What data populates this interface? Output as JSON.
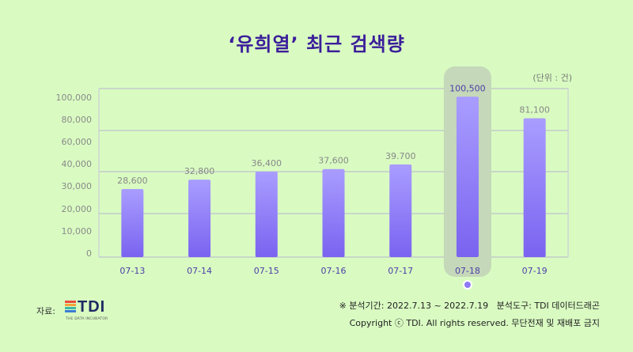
{
  "title": "‘유희열’ 최근 검색량",
  "unit_note": "(단위 : 건)",
  "source_label": "자료:",
  "logo": {
    "text": "TDI",
    "subtitle": "THE DATA INCUBATOR"
  },
  "footnote": {
    "period": "※ 분석기간: 2022.7.13 ~ 2022.7.19   분석도구: TDI 데이터드래곤",
    "copyright": "Copyright ⓒ TDI. All rights reserved. 무단전재 및 재배포 금지"
  },
  "colors": {
    "background": "#d9fbc2",
    "bar_top": "#a99dff",
    "bar_bottom": "#7a63f0",
    "highlight_panel": "#c5d8b9",
    "title": "#3b1e9a"
  },
  "chart_data": {
    "type": "bar",
    "title": "‘유희열’ 최근 검색량",
    "categories": [
      "07-13",
      "07-14",
      "07-15",
      "07-16",
      "07-17",
      "07-18",
      "07-19"
    ],
    "values": [
      28600,
      32800,
      36400,
      37600,
      39700,
      100500,
      81100
    ],
    "value_labels": [
      "28,600",
      "32,800",
      "36,400",
      "37,600",
      "39.700",
      "100,500",
      "81,100"
    ],
    "y_tick_labels": [
      "0",
      "10,000",
      "20,000",
      "30,000",
      "40,000",
      "60,000",
      "80,000",
      "100,000"
    ],
    "y_scale": "broken (non-linear ticks)",
    "highlight_category": "07-18",
    "grid": true,
    "legend": "none"
  }
}
